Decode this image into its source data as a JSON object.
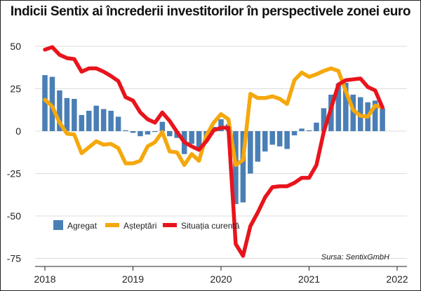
{
  "chart_data": {
    "type": "bar+line",
    "title": "Indicii Sentix ai încrederii investitorilor în perspectivele zonei euro",
    "source": "Sursa: SentixGmbH",
    "ylim": [
      -75,
      50
    ],
    "yticks": [
      "50",
      "25",
      "0",
      "-25",
      "-50",
      "-75"
    ],
    "ytick_values": [
      50,
      25,
      0,
      -25,
      -50,
      -75
    ],
    "xlim": [
      2018,
      2022
    ],
    "xticks": [
      "2018",
      "2019",
      "2020",
      "2021",
      "2022"
    ],
    "xtick_values": [
      2018,
      2019,
      2020,
      2021,
      2022
    ],
    "grid": true,
    "legend_position": "bottom-left",
    "colors": {
      "agregat": "#4a7fb5",
      "asteptari": "#f5a80d",
      "situatia": "#e8141c"
    },
    "series": [
      {
        "name": "Agregat",
        "type": "bar",
        "values": [
          33,
          32,
          24,
          19.5,
          19,
          9.5,
          12,
          15,
          13,
          12,
          8.5,
          0.5,
          -1,
          -3,
          -2,
          -0.5,
          5.5,
          -3,
          -4,
          -13.5,
          -7.5,
          -10.5,
          -6,
          2.5,
          7,
          4,
          -43,
          -42,
          -25,
          -18,
          -12,
          -8,
          -9,
          -10.5,
          -2.5,
          1.5,
          0.5,
          5,
          13.5,
          21.5,
          28,
          28.5,
          21.5,
          20,
          17,
          18,
          13.5
        ]
      },
      {
        "name": "Așteptări",
        "type": "line",
        "values": [
          18.5,
          14.5,
          5,
          -1.5,
          -2,
          -13,
          -9.5,
          -6,
          -8,
          -7.5,
          -10,
          -19,
          -19,
          -17.5,
          -9,
          -6.5,
          -0.5,
          -12,
          -12.5,
          -20,
          -13.5,
          -17.5,
          -2.5,
          5,
          10,
          7,
          -20,
          -17,
          22,
          19.5,
          19.5,
          20.5,
          19,
          16,
          30,
          34.5,
          32,
          33.5,
          35.5,
          37,
          35.5,
          23.5,
          12.5,
          9,
          8.5,
          15,
          14
        ]
      },
      {
        "name": "Situația curentă",
        "type": "line",
        "values": [
          48,
          49.5,
          45,
          43,
          42.5,
          35,
          37,
          37,
          35,
          32.5,
          29.5,
          20,
          18,
          11,
          7,
          5,
          11,
          6,
          -0.5,
          -6.5,
          -9,
          -11,
          -6,
          0.5,
          2,
          2,
          -66.5,
          -73.5,
          -56,
          -48,
          -39,
          -33,
          -32.5,
          -32.5,
          -30.5,
          -27.5,
          -27.5,
          -20,
          -0.5,
          13.5,
          27.5,
          30,
          30.5,
          31,
          26,
          24,
          14
        ]
      }
    ]
  }
}
